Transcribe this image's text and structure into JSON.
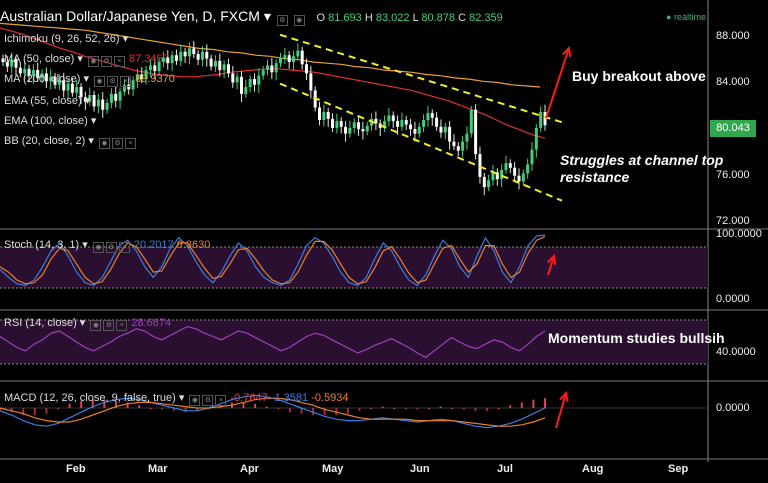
{
  "header": {
    "symbol": "Australian Dollar/Japanese Yen, D, FXCM",
    "ohlc": {
      "o_label": "O",
      "o": "81.693",
      "h_label": "H",
      "h": "83.022",
      "l_label": "L",
      "l": "80.878",
      "c_label": "C",
      "c": "82.359"
    },
    "realtime_label": "realtime"
  },
  "indicators": [
    {
      "label": "Ichimoku (9, 26, 52, 26)",
      "value": "",
      "color": "#dddddd"
    },
    {
      "label": "MA (50, close)",
      "value": "87.3457",
      "color": "#e03030"
    },
    {
      "label": "MA (200, close)",
      "value": "89.9370",
      "color": "#e8a030"
    },
    {
      "label": "EMA (55, close)",
      "value": "",
      "color": "#dddddd"
    },
    {
      "label": "EMA (100, close)",
      "value": "",
      "color": "#dddddd"
    },
    {
      "label": "BB (20, close, 2)",
      "value": "",
      "color": "#dddddd"
    }
  ],
  "price_axis": {
    "ticks": [
      "88.000",
      "84.000",
      "80.000",
      "76.000",
      "72.000"
    ],
    "current_price": "80.043",
    "accent": "#2ea84f"
  },
  "annotations": {
    "buy_breakout": "Buy breakout above",
    "struggles_line1": "Struggles at channel top",
    "struggles_line2": "resistance",
    "momentum": "Momentum studies bullsih"
  },
  "stoch": {
    "label": "Stoch (14, 3, 1)",
    "k_value": "20.2017",
    "d_value": "9.3630",
    "ticks": [
      "100.0000",
      "0.0000"
    ]
  },
  "rsi": {
    "label": "RSI (14, close)",
    "value": "28.6874",
    "ticks": [
      "40.0000"
    ]
  },
  "macd": {
    "label": "MACD (12, 26, close, 9, false, true)",
    "hist": "-0.7647",
    "macd": "-1.3581",
    "signal": "-0.5934",
    "ticks": [
      "0.0000"
    ]
  },
  "x_axis": [
    "Feb",
    "Mar",
    "Apr",
    "May",
    "Jun",
    "Jul",
    "Aug",
    "Sep"
  ],
  "chart_data": {
    "type": "candlestick",
    "price_range": [
      71,
      90
    ],
    "closes": [
      85.6,
      85.2,
      85.8,
      85.1,
      84.6,
      85.0,
      84.4,
      84.9,
      84.2,
      84.6,
      83.9,
      84.3,
      83.6,
      84.0,
      83.1,
      83.7,
      82.9,
      83.4,
      82.5,
      82.1,
      82.7,
      81.7,
      82.3,
      81.4,
      82.0,
      82.8,
      82.2,
      83.0,
      83.6,
      83.2,
      84.0,
      84.5,
      84.1,
      84.9,
      85.3,
      84.8,
      85.6,
      86.0,
      85.5,
      86.2,
      85.7,
      86.5,
      86.1,
      86.8,
      86.3,
      85.8,
      86.5,
      85.9,
      85.2,
      85.7,
      84.9,
      85.4,
      84.6,
      83.8,
      84.3,
      82.8,
      83.4,
      84.1,
      83.6,
      84.4,
      84.9,
      85.3,
      84.7,
      85.5,
      85.9,
      86.2,
      85.6,
      86.1,
      86.6,
      85.4,
      84.6,
      83.1,
      81.6,
      80.5,
      81.2,
      80.6,
      79.8,
      80.4,
      79.9,
      79.3,
      79.8,
      80.3,
      79.7,
      79.5,
      80.0,
      80.6,
      80.2,
      79.8,
      80.4,
      80.9,
      80.4,
      79.9,
      80.5,
      80.1,
      79.7,
      79.3,
      79.9,
      80.5,
      81.1,
      80.7,
      79.9,
      79.4,
      79.9,
      78.6,
      78.2,
      77.8,
      78.6,
      79.3,
      81.4,
      77.5,
      75.5,
      74.6,
      75.2,
      75.9,
      75.3,
      76.1,
      76.7,
      76.3,
      75.6,
      75.1,
      75.8,
      76.6,
      77.9,
      79.8,
      81.2,
      80.04
    ],
    "ma50": [
      88.6,
      88.3,
      88.0,
      87.6,
      87.2,
      86.8,
      86.5,
      86.1,
      85.8,
      85.5,
      85.2,
      84.9,
      84.7,
      84.5,
      84.4,
      84.3,
      84.3,
      84.4,
      84.5,
      84.7,
      84.8,
      84.9,
      85.0,
      85.0,
      84.9,
      84.8,
      84.7,
      84.5,
      84.3,
      84.1,
      83.9,
      83.7,
      83.5,
      83.3,
      83.1,
      82.8,
      82.5,
      82.2,
      81.8,
      81.4,
      81.0,
      80.5,
      80.0,
      79.6,
      79.2,
      78.9
    ],
    "ma200": [
      89.0,
      88.9,
      88.8,
      88.7,
      88.6,
      88.5,
      88.4,
      88.2,
      88.0,
      87.8,
      87.6,
      87.4,
      87.2,
      87.0,
      86.8,
      86.7,
      86.5,
      86.4,
      86.2,
      86.1,
      85.9,
      85.8,
      85.6,
      85.5,
      85.4,
      85.2,
      85.1,
      84.9,
      84.8,
      84.7,
      84.5,
      84.4,
      84.2,
      84.1,
      83.9,
      83.8,
      83.6,
      83.5,
      83.4
    ],
    "channel_upper": [
      [
        0.0,
        88.0
      ],
      [
        1.0,
        80.3
      ]
    ],
    "channel_lower": [
      [
        0.0,
        83.7
      ],
      [
        1.0,
        73.4
      ]
    ],
    "stoch_k": [
      35,
      20,
      8,
      5,
      15,
      40,
      70,
      85,
      60,
      30,
      10,
      5,
      20,
      50,
      80,
      90,
      70,
      40,
      20,
      40,
      75,
      95,
      80,
      50,
      25,
      10,
      30,
      60,
      85,
      70,
      40,
      20,
      10,
      5,
      15,
      45,
      80,
      95,
      85,
      60,
      30,
      10,
      5,
      20,
      55,
      85,
      70,
      40,
      15,
      5,
      25,
      60,
      90,
      75,
      40,
      20,
      60,
      95,
      70,
      30,
      10,
      40,
      80,
      98,
      100
    ],
    "stoch_d": [
      40,
      30,
      15,
      8,
      10,
      25,
      55,
      75,
      70,
      45,
      20,
      8,
      12,
      35,
      65,
      85,
      78,
      55,
      30,
      32,
      60,
      85,
      85,
      62,
      38,
      18,
      22,
      45,
      72,
      75,
      55,
      32,
      15,
      8,
      10,
      30,
      62,
      88,
      88,
      72,
      45,
      20,
      8,
      12,
      38,
      70,
      78,
      55,
      28,
      10,
      15,
      45,
      75,
      80,
      55,
      30,
      45,
      80,
      80,
      45,
      20,
      30,
      65,
      90,
      97
    ],
    "rsi": [
      55,
      50,
      45,
      42,
      48,
      52,
      58,
      60,
      55,
      50,
      45,
      42,
      46,
      50,
      55,
      58,
      62,
      60,
      55,
      52,
      56,
      60,
      64,
      62,
      58,
      55,
      52,
      56,
      60,
      58,
      54,
      50,
      46,
      42,
      45,
      50,
      55,
      58,
      56,
      52,
      48,
      44,
      40,
      43,
      47,
      50,
      53,
      49,
      45,
      40,
      36,
      42,
      48,
      54,
      50,
      46,
      44,
      48,
      52,
      50,
      45,
      42,
      48,
      55,
      60
    ],
    "macd": [
      -0.2,
      -0.5,
      -0.9,
      -1.2,
      -1.3,
      -1.1,
      -0.7,
      -0.3,
      0.1,
      0.4,
      0.6,
      0.7,
      0.6,
      0.4,
      0.2,
      0.0,
      -0.2,
      -0.2,
      0.0,
      0.3,
      0.6,
      0.8,
      0.9,
      0.8,
      0.6,
      0.3,
      0.0,
      -0.3,
      -0.6,
      -0.8,
      -0.9,
      -0.9,
      -0.8,
      -0.7,
      -0.8,
      -0.9,
      -1.0,
      -0.9,
      -0.8,
      -0.9,
      -1.1,
      -1.3,
      -1.4,
      -1.3,
      -1.1,
      -0.8,
      -0.4,
      0.0
    ],
    "signal": [
      0.0,
      -0.2,
      -0.4,
      -0.7,
      -0.9,
      -1.0,
      -1.0,
      -0.8,
      -0.5,
      -0.2,
      0.1,
      0.3,
      0.4,
      0.4,
      0.3,
      0.2,
      0.1,
      0.0,
      0.0,
      0.1,
      0.2,
      0.4,
      0.6,
      0.7,
      0.7,
      0.6,
      0.4,
      0.2,
      -0.1,
      -0.3,
      -0.5,
      -0.7,
      -0.8,
      -0.8,
      -0.8,
      -0.8,
      -0.9,
      -0.9,
      -0.9,
      -0.9,
      -1.0,
      -1.1,
      -1.2,
      -1.3,
      -1.3,
      -1.2,
      -1.0,
      -0.7
    ]
  }
}
